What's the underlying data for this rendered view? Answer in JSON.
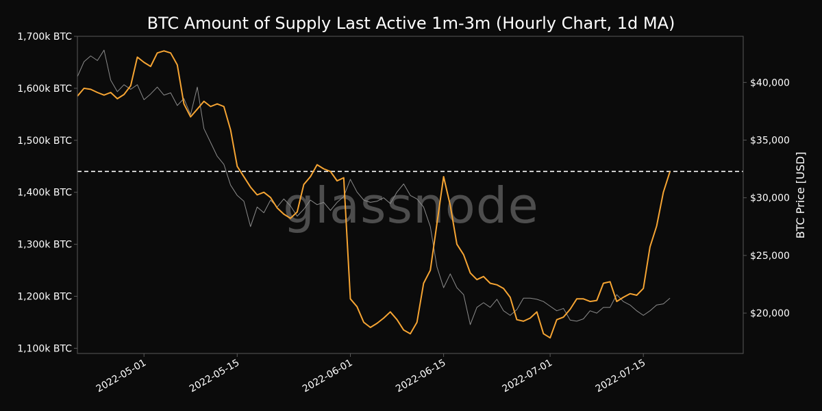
{
  "chart_data": {
    "type": "line",
    "title": "BTC Amount of Supply Last Active 1m-3m (Hourly Chart, 1d MA)",
    "watermark": "glassnode",
    "xlabel": "",
    "ylabel_left": "",
    "ylabel_right": "BTC Price [USD]",
    "x_ticks": [
      "2022-05-01",
      "2022-05-15",
      "2022-06-01",
      "2022-06-15",
      "2022-07-01",
      "2022-07-15"
    ],
    "x_range": [
      "2022-04-21",
      "2022-07-30"
    ],
    "ylim_left": [
      1090000,
      1700000
    ],
    "ylim_right": [
      16500,
      44000
    ],
    "y_ticks_left": [
      {
        "value": 1100000,
        "label": "1,100k BTC"
      },
      {
        "value": 1200000,
        "label": "1,200k BTC"
      },
      {
        "value": 1300000,
        "label": "1,300k BTC"
      },
      {
        "value": 1400000,
        "label": "1,400k BTC"
      },
      {
        "value": 1500000,
        "label": "1,500k BTC"
      },
      {
        "value": 1600000,
        "label": "1,600k BTC"
      },
      {
        "value": 1700000,
        "label": "1,700k BTC"
      }
    ],
    "y_ticks_right": [
      {
        "value": 20000,
        "label": "$20,000"
      },
      {
        "value": 25000,
        "label": "$25,000"
      },
      {
        "value": 30000,
        "label": "$30,000"
      },
      {
        "value": 35000,
        "label": "$35,000"
      },
      {
        "value": 40000,
        "label": "$40,000"
      }
    ],
    "reference_line_left": 1440000,
    "colors": {
      "background": "#0b0b0b",
      "supply": "#f7a533",
      "price": "#8c8c8c",
      "reference": "#ffffff",
      "frame": "#5a5a5a"
    },
    "series": [
      {
        "axis": "left",
        "points": [
          [
            "2022-04-21",
            1585000
          ],
          [
            "2022-04-22",
            1600000
          ],
          [
            "2022-04-23",
            1598000
          ],
          [
            "2022-04-24",
            1592000
          ],
          [
            "2022-04-25",
            1587000
          ],
          [
            "2022-04-26",
            1592000
          ],
          [
            "2022-04-27",
            1580000
          ],
          [
            "2022-04-28",
            1588000
          ],
          [
            "2022-04-29",
            1605000
          ],
          [
            "2022-04-30",
            1660000
          ],
          [
            "2022-05-01",
            1650000
          ],
          [
            "2022-05-02",
            1642000
          ],
          [
            "2022-05-03",
            1668000
          ],
          [
            "2022-05-04",
            1672000
          ],
          [
            "2022-05-05",
            1668000
          ],
          [
            "2022-05-06",
            1645000
          ],
          [
            "2022-05-07",
            1570000
          ],
          [
            "2022-05-08",
            1545000
          ],
          [
            "2022-05-09",
            1560000
          ],
          [
            "2022-05-10",
            1575000
          ],
          [
            "2022-05-11",
            1565000
          ],
          [
            "2022-05-12",
            1570000
          ],
          [
            "2022-05-13",
            1565000
          ],
          [
            "2022-05-14",
            1520000
          ],
          [
            "2022-05-15",
            1450000
          ],
          [
            "2022-05-16",
            1430000
          ],
          [
            "2022-05-17",
            1410000
          ],
          [
            "2022-05-18",
            1395000
          ],
          [
            "2022-05-19",
            1400000
          ],
          [
            "2022-05-20",
            1390000
          ],
          [
            "2022-05-21",
            1370000
          ],
          [
            "2022-05-22",
            1358000
          ],
          [
            "2022-05-23",
            1350000
          ],
          [
            "2022-05-24",
            1362000
          ],
          [
            "2022-05-25",
            1415000
          ],
          [
            "2022-05-26",
            1430000
          ],
          [
            "2022-05-27",
            1453000
          ],
          [
            "2022-05-28",
            1445000
          ],
          [
            "2022-05-29",
            1440000
          ],
          [
            "2022-05-30",
            1422000
          ],
          [
            "2022-05-31",
            1428000
          ],
          [
            "2022-06-01",
            1195000
          ],
          [
            "2022-06-02",
            1180000
          ],
          [
            "2022-06-03",
            1150000
          ],
          [
            "2022-06-04",
            1140000
          ],
          [
            "2022-06-05",
            1148000
          ],
          [
            "2022-06-06",
            1158000
          ],
          [
            "2022-06-07",
            1170000
          ],
          [
            "2022-06-08",
            1155000
          ],
          [
            "2022-06-09",
            1135000
          ],
          [
            "2022-06-10",
            1128000
          ],
          [
            "2022-06-11",
            1150000
          ],
          [
            "2022-06-12",
            1225000
          ],
          [
            "2022-06-13",
            1250000
          ],
          [
            "2022-06-14",
            1340000
          ],
          [
            "2022-06-15",
            1430000
          ],
          [
            "2022-06-16",
            1375000
          ],
          [
            "2022-06-17",
            1300000
          ],
          [
            "2022-06-18",
            1280000
          ],
          [
            "2022-06-19",
            1245000
          ],
          [
            "2022-06-20",
            1232000
          ],
          [
            "2022-06-21",
            1238000
          ],
          [
            "2022-06-22",
            1225000
          ],
          [
            "2022-06-23",
            1222000
          ],
          [
            "2022-06-24",
            1215000
          ],
          [
            "2022-06-25",
            1198000
          ],
          [
            "2022-06-26",
            1155000
          ],
          [
            "2022-06-27",
            1152000
          ],
          [
            "2022-06-28",
            1158000
          ],
          [
            "2022-06-29",
            1170000
          ],
          [
            "2022-06-30",
            1128000
          ],
          [
            "2022-07-01",
            1120000
          ],
          [
            "2022-07-02",
            1155000
          ],
          [
            "2022-07-03",
            1160000
          ],
          [
            "2022-07-04",
            1175000
          ],
          [
            "2022-07-05",
            1195000
          ],
          [
            "2022-07-06",
            1195000
          ],
          [
            "2022-07-07",
            1190000
          ],
          [
            "2022-07-08",
            1192000
          ],
          [
            "2022-07-09",
            1225000
          ],
          [
            "2022-07-10",
            1228000
          ],
          [
            "2022-07-11",
            1190000
          ],
          [
            "2022-07-12",
            1198000
          ],
          [
            "2022-07-13",
            1205000
          ],
          [
            "2022-07-14",
            1202000
          ],
          [
            "2022-07-15",
            1215000
          ],
          [
            "2022-07-16",
            1295000
          ],
          [
            "2022-07-17",
            1335000
          ],
          [
            "2022-07-18",
            1400000
          ],
          [
            "2022-07-19",
            1440000
          ]
        ]
      },
      {
        "axis": "right",
        "points": [
          [
            "2022-04-21",
            40500
          ],
          [
            "2022-04-22",
            41800
          ],
          [
            "2022-04-23",
            42300
          ],
          [
            "2022-04-24",
            41900
          ],
          [
            "2022-04-25",
            42800
          ],
          [
            "2022-04-26",
            40200
          ],
          [
            "2022-04-27",
            39200
          ],
          [
            "2022-04-28",
            39800
          ],
          [
            "2022-04-29",
            39400
          ],
          [
            "2022-04-30",
            39800
          ],
          [
            "2022-05-01",
            38500
          ],
          [
            "2022-05-02",
            39000
          ],
          [
            "2022-05-03",
            39600
          ],
          [
            "2022-05-04",
            38900
          ],
          [
            "2022-05-05",
            39100
          ],
          [
            "2022-05-06",
            38000
          ],
          [
            "2022-05-07",
            38600
          ],
          [
            "2022-05-08",
            37200
          ],
          [
            "2022-05-09",
            39600
          ],
          [
            "2022-05-10",
            36000
          ],
          [
            "2022-05-11",
            34800
          ],
          [
            "2022-05-12",
            33600
          ],
          [
            "2022-05-13",
            32900
          ],
          [
            "2022-05-14",
            31100
          ],
          [
            "2022-05-15",
            30200
          ],
          [
            "2022-05-16",
            29700
          ],
          [
            "2022-05-17",
            27500
          ],
          [
            "2022-05-18",
            29200
          ],
          [
            "2022-05-19",
            28700
          ],
          [
            "2022-05-20",
            29800
          ],
          [
            "2022-05-21",
            29200
          ],
          [
            "2022-05-22",
            29900
          ],
          [
            "2022-05-23",
            29300
          ],
          [
            "2022-05-24",
            28400
          ],
          [
            "2022-05-25",
            29000
          ],
          [
            "2022-05-26",
            29800
          ],
          [
            "2022-05-27",
            29400
          ],
          [
            "2022-05-28",
            29600
          ],
          [
            "2022-05-29",
            28900
          ],
          [
            "2022-05-30",
            29600
          ],
          [
            "2022-05-31",
            30100
          ],
          [
            "2022-06-01",
            31600
          ],
          [
            "2022-06-02",
            30500
          ],
          [
            "2022-06-03",
            29800
          ],
          [
            "2022-06-04",
            29600
          ],
          [
            "2022-06-05",
            29700
          ],
          [
            "2022-06-06",
            30000
          ],
          [
            "2022-06-07",
            29500
          ],
          [
            "2022-06-08",
            30500
          ],
          [
            "2022-06-09",
            31200
          ],
          [
            "2022-06-10",
            30200
          ],
          [
            "2022-06-11",
            29900
          ],
          [
            "2022-06-12",
            29200
          ],
          [
            "2022-06-13",
            27500
          ],
          [
            "2022-06-14",
            24000
          ],
          [
            "2022-06-15",
            22200
          ],
          [
            "2022-06-16",
            23400
          ],
          [
            "2022-06-17",
            22200
          ],
          [
            "2022-06-18",
            21600
          ],
          [
            "2022-06-19",
            19000
          ],
          [
            "2022-06-20",
            20500
          ],
          [
            "2022-06-21",
            20900
          ],
          [
            "2022-06-22",
            20500
          ],
          [
            "2022-06-23",
            21200
          ],
          [
            "2022-06-24",
            20200
          ],
          [
            "2022-06-25",
            19800
          ],
          [
            "2022-06-26",
            20300
          ],
          [
            "2022-06-27",
            21300
          ],
          [
            "2022-06-28",
            21300
          ],
          [
            "2022-06-29",
            21200
          ],
          [
            "2022-06-30",
            21000
          ],
          [
            "2022-07-01",
            20600
          ],
          [
            "2022-07-02",
            20200
          ],
          [
            "2022-07-03",
            20400
          ],
          [
            "2022-07-04",
            19400
          ],
          [
            "2022-07-05",
            19300
          ],
          [
            "2022-07-06",
            19500
          ],
          [
            "2022-07-07",
            20200
          ],
          [
            "2022-07-08",
            20000
          ],
          [
            "2022-07-09",
            20500
          ],
          [
            "2022-07-10",
            20500
          ],
          [
            "2022-07-11",
            21600
          ],
          [
            "2022-07-12",
            21000
          ],
          [
            "2022-07-13",
            20700
          ],
          [
            "2022-07-14",
            20200
          ],
          [
            "2022-07-15",
            19800
          ],
          [
            "2022-07-16",
            20200
          ],
          [
            "2022-07-17",
            20700
          ],
          [
            "2022-07-18",
            20800
          ],
          [
            "2022-07-19",
            21300
          ]
        ]
      }
    ]
  }
}
